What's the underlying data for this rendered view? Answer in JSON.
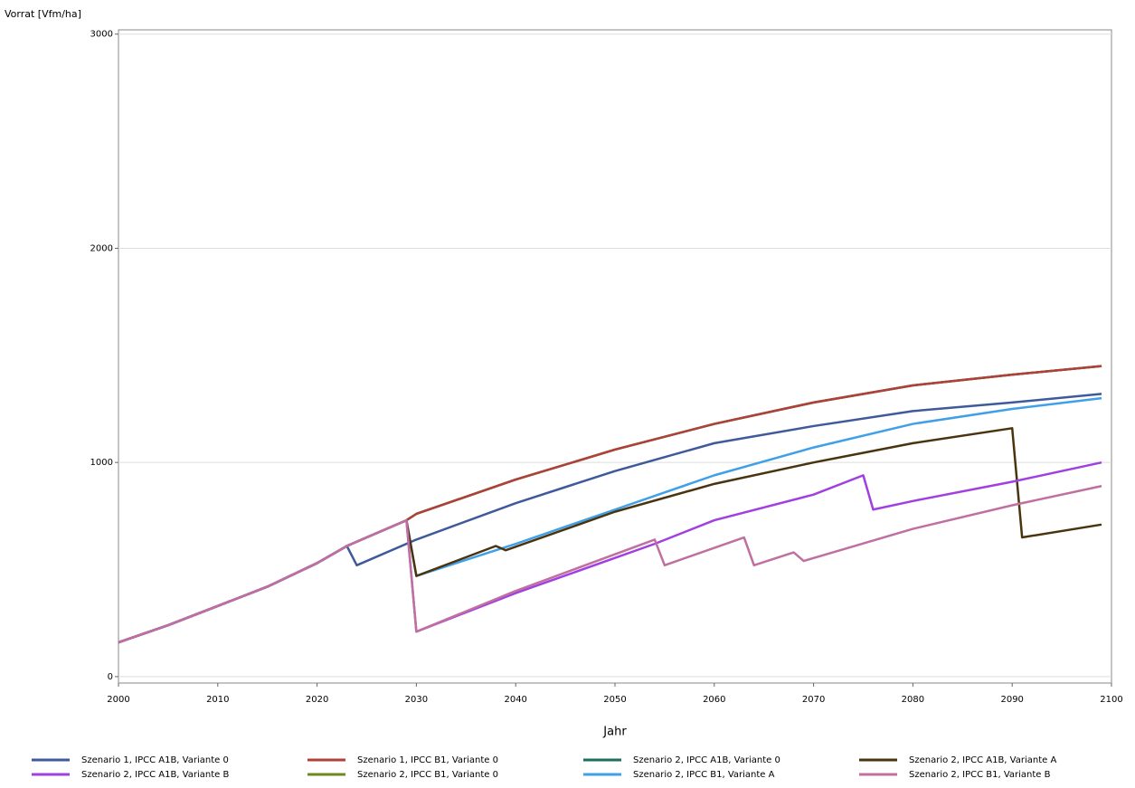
{
  "chart_data": {
    "type": "line",
    "ylabel": "Vorrat [Vfm/ha]",
    "xlabel": "Jahr",
    "xlim": [
      2000,
      2100
    ],
    "xticks": [
      2000,
      2010,
      2020,
      2030,
      2040,
      2050,
      2060,
      2070,
      2080,
      2090,
      2100
    ],
    "ylim": [
      -30,
      3020
    ],
    "yticks": [
      0,
      1000,
      2000,
      3000
    ],
    "grid": true,
    "series": [
      {
        "name": "Szenario 1, IPCC A1B, Variante 0",
        "color": "#3f5a9a",
        "x": [
          2000,
          2005,
          2010,
          2015,
          2020,
          2023,
          2024,
          2030,
          2040,
          2050,
          2060,
          2070,
          2080,
          2090,
          2099
        ],
        "values": [
          160,
          240,
          330,
          420,
          530,
          610,
          520,
          640,
          810,
          960,
          1090,
          1170,
          1240,
          1280,
          1320
        ]
      },
      {
        "name": "Szenario 2, IPCC A1B, Variante B",
        "color": "#a040e0",
        "x": [
          2000,
          2005,
          2010,
          2015,
          2020,
          2023,
          2025,
          2029,
          2030,
          2040,
          2054,
          2060,
          2070,
          2075,
          2076,
          2080,
          2090,
          2099
        ],
        "values": [
          160,
          240,
          330,
          420,
          530,
          610,
          650,
          730,
          210,
          390,
          620,
          730,
          850,
          940,
          780,
          820,
          910,
          1000
        ]
      },
      {
        "name": "Szenario 1, IPCC B1, Variante 0",
        "color": "#b0403a",
        "x": [
          2000,
          2005,
          2010,
          2015,
          2020,
          2023,
          2025,
          2029,
          2030,
          2040,
          2050,
          2060,
          2070,
          2080,
          2090,
          2099
        ],
        "values": [
          160,
          240,
          330,
          420,
          530,
          610,
          650,
          730,
          760,
          920,
          1060,
          1180,
          1280,
          1360,
          1410,
          1450
        ]
      },
      {
        "name": "Szenario 2, IPCC B1, Variante 0",
        "color": "#6e8a1e",
        "x": [
          2000,
          2005,
          2010,
          2015,
          2020,
          2023,
          2025,
          2029,
          2030,
          2040,
          2050,
          2060,
          2070,
          2080,
          2090,
          2099
        ],
        "values": [
          160,
          240,
          330,
          420,
          530,
          610,
          650,
          730,
          760,
          920,
          1060,
          1180,
          1280,
          1360,
          1410,
          1450
        ]
      },
      {
        "name": "Szenario 2, IPCC A1B, Variante 0",
        "color": "#1f6e5c",
        "x": [
          2000,
          2005,
          2010,
          2015,
          2020,
          2023,
          2025,
          2029,
          2030,
          2040,
          2050,
          2060,
          2070,
          2080,
          2090,
          2099
        ],
        "values": [
          160,
          240,
          330,
          420,
          530,
          610,
          650,
          730,
          760,
          920,
          1060,
          1180,
          1280,
          1360,
          1410,
          1450
        ]
      },
      {
        "name": "Szenario 2, IPCC B1, Variante A",
        "color": "#3fa0e8",
        "x": [
          2000,
          2005,
          2010,
          2015,
          2020,
          2023,
          2025,
          2029,
          2030,
          2040,
          2050,
          2060,
          2070,
          2080,
          2090,
          2099
        ],
        "values": [
          160,
          240,
          330,
          420,
          530,
          610,
          650,
          730,
          470,
          620,
          780,
          940,
          1070,
          1180,
          1250,
          1300
        ]
      },
      {
        "name": "Szenario 2, IPCC A1B, Variante A",
        "color": "#4a3410",
        "x": [
          2000,
          2005,
          2010,
          2015,
          2020,
          2023,
          2025,
          2029,
          2030,
          2038,
          2039,
          2050,
          2060,
          2070,
          2080,
          2090,
          2091,
          2099
        ],
        "values": [
          160,
          240,
          330,
          420,
          530,
          610,
          650,
          730,
          470,
          610,
          590,
          770,
          900,
          1000,
          1090,
          1160,
          650,
          710
        ]
      },
      {
        "name": "Szenario 2, IPCC B1, Variante B",
        "color": "#c070a0",
        "x": [
          2000,
          2005,
          2010,
          2015,
          2020,
          2023,
          2025,
          2029,
          2030,
          2040,
          2054,
          2055,
          2063,
          2064,
          2068,
          2069,
          2080,
          2090,
          2099
        ],
        "values": [
          160,
          240,
          330,
          420,
          530,
          610,
          650,
          730,
          210,
          400,
          640,
          520,
          650,
          520,
          580,
          540,
          690,
          800,
          890
        ]
      }
    ]
  }
}
